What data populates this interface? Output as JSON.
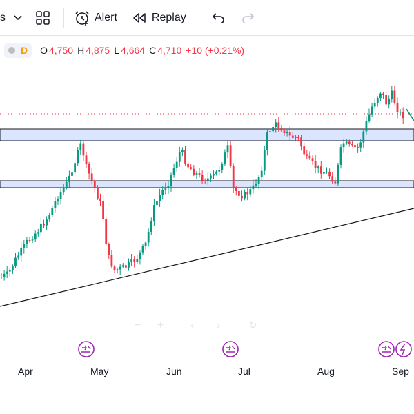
{
  "toolbar": {
    "interval_fragment": "s",
    "alert_label": "Alert",
    "replay_label": "Replay"
  },
  "legend": {
    "interval_letter": "D",
    "open_label": "O",
    "open_value": "4,750",
    "high_label": "H",
    "high_value": "4,875",
    "low_label": "L",
    "low_value": "4,664",
    "close_label": "C",
    "close_value": "4,710",
    "change": "+10 (+0.21%)"
  },
  "colors": {
    "up": "#089981",
    "down": "#f23645",
    "zone_fill": "#dbe5ff",
    "accent": "#9c27b0"
  },
  "chart_data": {
    "type": "candlestick",
    "x_tick_labels": [
      "Apr",
      "May",
      "Jun",
      "Jul",
      "Aug",
      "Sep"
    ],
    "y_axis_visible": false,
    "last_open": 4750,
    "last_high": 4875,
    "last_low": 4664,
    "last_close": 4710,
    "last_change": 10,
    "last_change_pct": 0.21,
    "events": [
      "dividend",
      "dividend",
      "dividend",
      "split"
    ]
  }
}
